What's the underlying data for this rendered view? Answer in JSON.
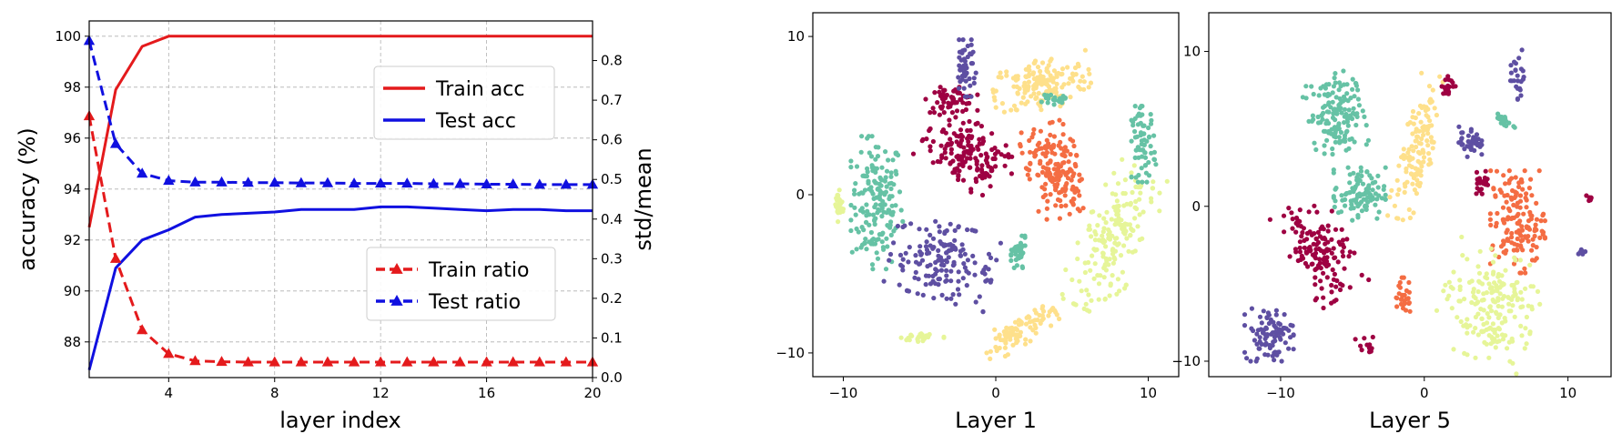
{
  "chart_data": [
    {
      "type": "line",
      "xlabel": "layer index",
      "ylabel": "accuracy (%)",
      "y2label": "std/mean",
      "xlim": [
        1,
        20
      ],
      "ylim": [
        86.6,
        100.6
      ],
      "y2lim": [
        0,
        0.9
      ],
      "grid": true,
      "xticks": [
        4,
        8,
        12,
        16,
        20
      ],
      "yticks": [
        88,
        90,
        92,
        94,
        96,
        98,
        100
      ],
      "y2ticks": [
        0.0,
        0.1,
        0.2,
        0.3,
        0.4,
        0.5,
        0.6,
        0.7,
        0.8
      ],
      "x": [
        1,
        2,
        3,
        4,
        5,
        6,
        7,
        8,
        9,
        10,
        11,
        12,
        13,
        14,
        15,
        16,
        17,
        18,
        19,
        20
      ],
      "legends": [
        {
          "placement": "upper-right",
          "entries": [
            "train_acc",
            "test_acc"
          ]
        },
        {
          "placement": "lower-right",
          "entries": [
            "train_ratio",
            "test_ratio"
          ]
        }
      ],
      "series": [
        {
          "key": "train_acc",
          "name": "Train acc",
          "axis": "left",
          "color": "#e41a1c",
          "style": "solid",
          "marker": "none",
          "values": [
            92.5,
            97.9,
            99.6,
            100,
            100,
            100,
            100,
            100,
            100,
            100,
            100,
            100,
            100,
            100,
            100,
            100,
            100,
            100,
            100,
            100
          ]
        },
        {
          "key": "test_acc",
          "name": "Test acc",
          "axis": "left",
          "color": "#1010e0",
          "style": "solid",
          "marker": "none",
          "values": [
            86.9,
            90.9,
            92.0,
            92.4,
            92.9,
            93.0,
            93.05,
            93.1,
            93.2,
            93.2,
            93.2,
            93.3,
            93.3,
            93.25,
            93.2,
            93.15,
            93.2,
            93.2,
            93.15,
            93.15
          ]
        },
        {
          "key": "train_ratio",
          "name": "Train ratio",
          "axis": "right",
          "color": "#e41a1c",
          "style": "dashed",
          "marker": "triangle",
          "values": [
            0.66,
            0.3,
            0.12,
            0.06,
            0.042,
            0.04,
            0.039,
            0.039,
            0.039,
            0.039,
            0.039,
            0.039,
            0.039,
            0.039,
            0.039,
            0.039,
            0.039,
            0.039,
            0.039,
            0.039
          ]
        },
        {
          "key": "test_ratio",
          "name": "Test ratio",
          "axis": "right",
          "color": "#1010e0",
          "style": "dashed",
          "marker": "triangle",
          "values": [
            0.85,
            0.59,
            0.515,
            0.497,
            0.493,
            0.493,
            0.492,
            0.492,
            0.491,
            0.491,
            0.49,
            0.49,
            0.49,
            0.489,
            0.489,
            0.488,
            0.488,
            0.487,
            0.487,
            0.487
          ]
        }
      ]
    },
    {
      "type": "scatter",
      "title": "",
      "xlabel": "Layer 1",
      "xlim": [
        -12,
        12
      ],
      "ylim": [
        -11.5,
        11.5
      ],
      "xticks": [
        -10,
        0,
        10
      ],
      "yticks": [
        -10,
        0,
        10
      ],
      "clusters": [
        {
          "color": "#66c2a5",
          "points": 170,
          "cx": -7.8,
          "cy": -0.5,
          "rx": 1.7,
          "ry": 4.2,
          "rot": 0
        },
        {
          "color": "#5e4fa2",
          "points": 160,
          "cx": -3.5,
          "cy": -4.2,
          "rx": 3.4,
          "ry": 2.4,
          "rot": -15
        },
        {
          "color": "#9e0142",
          "points": 160,
          "cx": -1.8,
          "cy": 2.5,
          "rx": 3.0,
          "ry": 2.0,
          "rot": -35
        },
        {
          "color": "#9e0142",
          "points": 60,
          "cx": -2.9,
          "cy": 6.0,
          "rx": 1.7,
          "ry": 0.8,
          "rot": 0
        },
        {
          "color": "#fee08b",
          "points": 160,
          "cx": 3.0,
          "cy": 7.0,
          "rx": 3.2,
          "ry": 1.6,
          "rot": 10
        },
        {
          "color": "#f46d43",
          "points": 170,
          "cx": 3.8,
          "cy": 1.5,
          "rx": 1.7,
          "ry": 3.0,
          "rot": 15
        },
        {
          "color": "#e6f598",
          "points": 180,
          "cx": 7.7,
          "cy": -2.8,
          "rx": 2.0,
          "ry": 4.8,
          "rot": -25
        },
        {
          "color": "#66c2a5",
          "points": 70,
          "cx": 9.7,
          "cy": 3.2,
          "rx": 0.8,
          "ry": 2.4,
          "rot": 0
        },
        {
          "color": "#fee08b",
          "points": 90,
          "cx": 1.6,
          "cy": -8.6,
          "rx": 2.6,
          "ry": 0.9,
          "rot": 30
        },
        {
          "color": "#5e4fa2",
          "points": 50,
          "cx": -2.0,
          "cy": 8.0,
          "rx": 0.7,
          "ry": 1.8,
          "rot": 0
        },
        {
          "color": "#66c2a5",
          "points": 40,
          "cx": 1.5,
          "cy": -3.8,
          "rx": 0.5,
          "ry": 1.2,
          "rot": 0
        },
        {
          "color": "#e6f598",
          "points": 30,
          "cx": -10.3,
          "cy": -0.7,
          "rx": 0.3,
          "ry": 1.0,
          "rot": 0
        },
        {
          "color": "#e6f598",
          "points": 25,
          "cx": -4.8,
          "cy": -9.0,
          "rx": 1.4,
          "ry": 0.4,
          "rot": 0
        },
        {
          "color": "#66c2a5",
          "points": 20,
          "cx": 3.8,
          "cy": 6.0,
          "rx": 0.8,
          "ry": 0.3,
          "rot": 0
        }
      ]
    },
    {
      "type": "scatter",
      "title": "",
      "xlabel": "Layer 5",
      "xlim": [
        -15,
        13
      ],
      "ylim": [
        -11,
        12.5
      ],
      "xticks": [
        -10,
        0,
        10
      ],
      "yticks": [
        -10,
        0,
        10
      ],
      "clusters": [
        {
          "color": "#66c2a5",
          "points": 150,
          "cx": -6.2,
          "cy": 6.0,
          "rx": 1.9,
          "ry": 2.5,
          "rot": 15
        },
        {
          "color": "#66c2a5",
          "points": 100,
          "cx": -4.5,
          "cy": 0.8,
          "rx": 1.8,
          "ry": 1.7,
          "rot": 0
        },
        {
          "color": "#fee08b",
          "points": 130,
          "cx": -0.4,
          "cy": 3.8,
          "rx": 1.1,
          "ry": 4.8,
          "rot": -15
        },
        {
          "color": "#9e0142",
          "points": 140,
          "cx": -7.3,
          "cy": -2.8,
          "rx": 2.0,
          "ry": 3.4,
          "rot": 30
        },
        {
          "color": "#5e4fa2",
          "points": 90,
          "cx": -10.8,
          "cy": -8.3,
          "rx": 1.7,
          "ry": 1.7,
          "rot": 0
        },
        {
          "color": "#f46d43",
          "points": 150,
          "cx": 6.5,
          "cy": -1.0,
          "rx": 1.9,
          "ry": 3.3,
          "rot": 0
        },
        {
          "color": "#e6f598",
          "points": 190,
          "cx": 4.5,
          "cy": -6.4,
          "rx": 3.3,
          "ry": 3.5,
          "rot": -20
        },
        {
          "color": "#5e4fa2",
          "points": 40,
          "cx": 3.2,
          "cy": 4.2,
          "rx": 0.8,
          "ry": 1.0,
          "rot": 0
        },
        {
          "color": "#f46d43",
          "points": 30,
          "cx": -1.5,
          "cy": -5.8,
          "rx": 0.6,
          "ry": 1.2,
          "rot": 0
        },
        {
          "color": "#5e4fa2",
          "points": 25,
          "cx": 6.6,
          "cy": 8.5,
          "rx": 0.6,
          "ry": 1.6,
          "rot": 0
        },
        {
          "color": "#9e0142",
          "points": 25,
          "cx": 4.0,
          "cy": 1.6,
          "rx": 0.5,
          "ry": 0.8,
          "rot": 0
        },
        {
          "color": "#66c2a5",
          "points": 20,
          "cx": 5.5,
          "cy": 5.5,
          "rx": 0.9,
          "ry": 0.3,
          "rot": -25
        },
        {
          "color": "#9e0142",
          "points": 20,
          "cx": 1.8,
          "cy": 7.8,
          "rx": 0.6,
          "ry": 0.6,
          "rot": 0
        },
        {
          "color": "#9e0142",
          "points": 12,
          "cx": -4.0,
          "cy": -9.0,
          "rx": 0.8,
          "ry": 0.6,
          "rot": 0
        },
        {
          "color": "#5e4fa2",
          "points": 8,
          "cx": 11.0,
          "cy": -3.0,
          "rx": 0.3,
          "ry": 0.3,
          "rot": 0
        },
        {
          "color": "#9e0142",
          "points": 8,
          "cx": 11.5,
          "cy": 0.5,
          "rx": 0.3,
          "ry": 0.3,
          "rot": 0
        }
      ]
    }
  ]
}
